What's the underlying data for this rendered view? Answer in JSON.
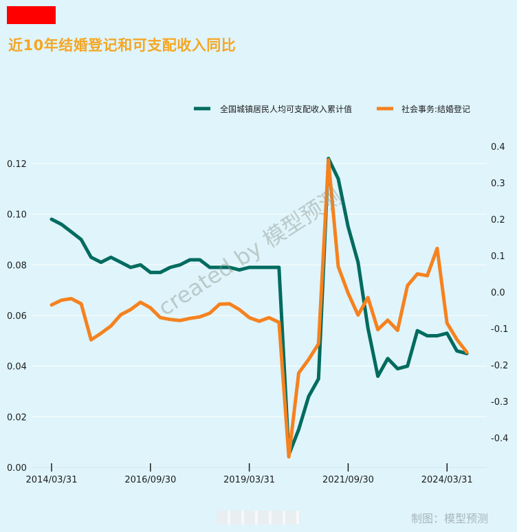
{
  "header": {
    "title": "近10年结婚登记和可支配收入同比"
  },
  "colors": {
    "brand_block": "#ff0000",
    "title": "#f5a623",
    "income": "#006b5f",
    "marriage": "#f5821f",
    "grid": "#ffffff"
  },
  "footer": {
    "source": "制图：模型预测",
    "watermark": "created by 模型预测"
  },
  "chart_data": {
    "type": "line",
    "title": "近10年结婚登记和可支配收入同比",
    "x_ticks": [
      "2014/03/31",
      "2016/09/30",
      "2019/03/31",
      "2021/09/30",
      "2024/03/31"
    ],
    "y_left": {
      "lim": [
        0,
        0.12
      ],
      "ticks": [
        "0.00",
        "0.02",
        "0.04",
        "0.06",
        "0.08",
        "0.10",
        "0.12"
      ]
    },
    "y_right": {
      "lim": [
        -0.4,
        0.4
      ],
      "ticks": [
        "-0.4",
        "-0.3",
        "-0.2",
        "-0.1",
        "0.0",
        "0.1",
        "0.2",
        "0.3",
        "0.4"
      ]
    },
    "legend_position": "top-right",
    "grid": true,
    "series": [
      {
        "name": "全国城镇居民人均可支配收入累计值",
        "axis": "left",
        "x": [
          "2014/03/31",
          "2014/06/30",
          "2014/09/30",
          "2014/12/31",
          "2015/03/31",
          "2015/06/30",
          "2015/09/30",
          "2015/12/31",
          "2016/03/31",
          "2016/06/30",
          "2016/09/30",
          "2016/12/31",
          "2017/03/31",
          "2017/06/30",
          "2017/09/30",
          "2017/12/31",
          "2018/03/31",
          "2018/06/30",
          "2018/09/30",
          "2018/12/31",
          "2019/03/31",
          "2019/06/30",
          "2019/09/30",
          "2019/12/31",
          "2020/03/31",
          "2020/06/30",
          "2020/09/30",
          "2020/12/31",
          "2021/03/31",
          "2021/06/30",
          "2021/09/30",
          "2021/12/31",
          "2022/03/31",
          "2022/06/30",
          "2022/09/30",
          "2022/12/31",
          "2023/03/31",
          "2023/06/30",
          "2023/09/30",
          "2023/12/31",
          "2024/03/31",
          "2024/06/30",
          "2024/09/30"
        ],
        "values": [
          0.098,
          0.096,
          0.093,
          0.09,
          0.083,
          0.081,
          0.083,
          0.081,
          0.079,
          0.08,
          0.077,
          0.077,
          0.079,
          0.08,
          0.082,
          0.082,
          0.079,
          0.079,
          0.079,
          0.078,
          0.079,
          0.079,
          0.079,
          0.079,
          0.005,
          0.015,
          0.028,
          0.035,
          0.122,
          0.114,
          0.095,
          0.081,
          0.055,
          0.036,
          0.043,
          0.039,
          0.04,
          0.054,
          0.052,
          0.052,
          0.053,
          0.046,
          0.045
        ]
      },
      {
        "name": "社会事务:结婚登记",
        "axis": "right",
        "x": [
          "2014/03/31",
          "2014/06/30",
          "2014/09/30",
          "2014/12/31",
          "2015/03/31",
          "2015/06/30",
          "2015/09/30",
          "2015/12/31",
          "2016/03/31",
          "2016/06/30",
          "2016/09/30",
          "2016/12/31",
          "2017/03/31",
          "2017/06/30",
          "2017/09/30",
          "2017/12/31",
          "2018/03/31",
          "2018/06/30",
          "2018/09/30",
          "2018/12/31",
          "2019/03/31",
          "2019/06/30",
          "2019/09/30",
          "2019/12/31",
          "2020/03/31",
          "2020/06/30",
          "2020/09/30",
          "2020/12/31",
          "2021/03/31",
          "2021/06/30",
          "2021/09/30",
          "2021/12/31",
          "2022/03/31",
          "2022/06/30",
          "2022/09/30",
          "2022/12/31",
          "2023/03/31",
          "2023/06/30",
          "2023/09/30",
          "2023/12/31",
          "2024/03/31",
          "2024/06/30",
          "2024/09/30"
        ],
        "values": [
          -0.035,
          -0.022,
          -0.018,
          -0.032,
          -0.131,
          -0.113,
          -0.093,
          -0.062,
          -0.048,
          -0.028,
          -0.043,
          -0.07,
          -0.075,
          -0.078,
          -0.072,
          -0.068,
          -0.058,
          -0.033,
          -0.032,
          -0.048,
          -0.07,
          -0.08,
          -0.07,
          -0.083,
          -0.452,
          -0.222,
          -0.185,
          -0.142,
          0.363,
          0.07,
          -0.003,
          -0.063,
          -0.015,
          -0.103,
          -0.077,
          -0.105,
          0.018,
          0.05,
          0.045,
          0.12,
          -0.085,
          -0.13,
          -0.165
        ]
      }
    ]
  }
}
